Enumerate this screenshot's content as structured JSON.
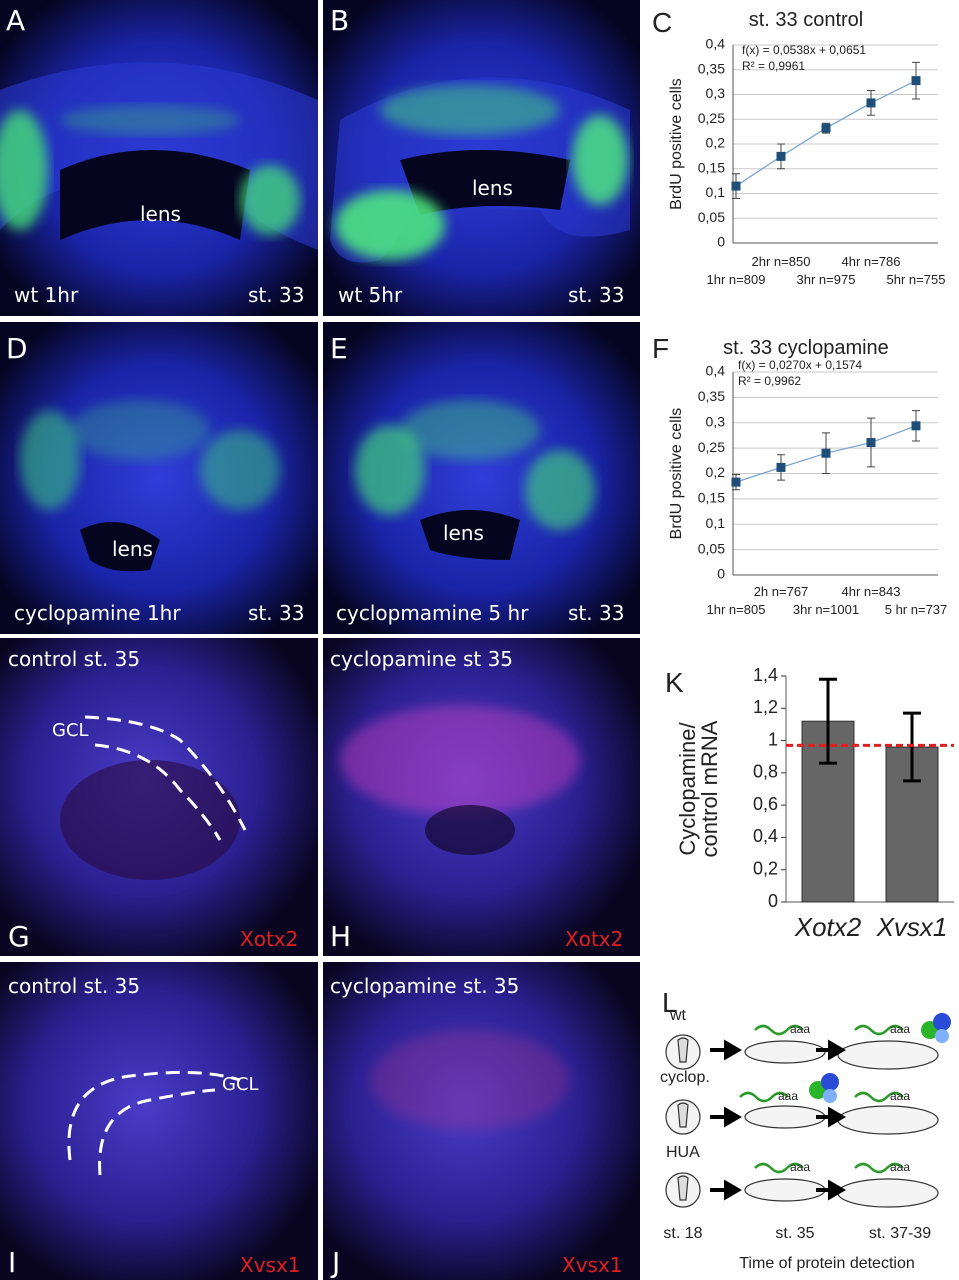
{
  "chart_data": [
    {
      "type": "line",
      "panel_label": "C",
      "title": "st. 33 control",
      "ylabel": [
        "BrdU positive cells"
      ],
      "annotations": [
        "f(x) = 0,0538x + 0,0651",
        "R² = 0,9961"
      ],
      "categories": [
        "1hr n=809",
        "2hr n=850",
        "3hr n=975",
        "4hr n=786",
        "5hr n=755"
      ],
      "values": [
        0.115,
        0.175,
        0.232,
        0.283,
        0.328
      ],
      "errors": [
        0.025,
        0.025,
        0.01,
        0.025,
        0.037
      ],
      "color": "#1f4e79",
      "line_color": "#6f9fd0",
      "ylim": [
        0,
        0.4
      ],
      "yticks": [
        0,
        {
          "value": 0.05,
          "label": "0,05"
        },
        {
          "value": 0.1,
          "label": "0,1"
        },
        {
          "value": 0.15,
          "label": "0,15"
        },
        {
          "value": 0.2,
          "label": "0,2"
        },
        {
          "value": 0.25,
          "label": "0,25"
        },
        {
          "value": 0.3,
          "label": "0,3"
        },
        {
          "value": 0.35,
          "label": "0,35"
        },
        {
          "value": 0.4,
          "label": "0,4"
        }
      ],
      "grid": true
    },
    {
      "type": "line",
      "panel_label": "F",
      "title": "st. 33 cyclopamine",
      "ylabel": [
        "BrdU positive cells"
      ],
      "annotations": [
        "f(x) = 0,0270x + 0,1574",
        "R² = 0,9962"
      ],
      "categories": [
        "1hr n=805",
        "2h n=767",
        "3hr n=1001",
        "4hr n=843",
        "5 hr n=737"
      ],
      "values": [
        0.183,
        0.212,
        0.24,
        0.261,
        0.294
      ],
      "errors": [
        0.015,
        0.025,
        0.04,
        0.048,
        0.03
      ],
      "color": "#1f4e79",
      "line_color": "#6f9fd0",
      "ylim": [
        0,
        0.4
      ],
      "yticks": [
        0,
        {
          "value": 0.05,
          "label": "0,05"
        },
        {
          "value": 0.1,
          "label": "0,1"
        },
        {
          "value": 0.15,
          "label": "0,15"
        },
        {
          "value": 0.2,
          "label": "0,2"
        },
        {
          "value": 0.25,
          "label": "0,25"
        },
        {
          "value": 0.3,
          "label": "0,3"
        },
        {
          "value": 0.35,
          "label": "0,35"
        },
        {
          "value": 0.4,
          "label": "0,4"
        }
      ],
      "grid": true
    },
    {
      "type": "bar",
      "panel_label": "K",
      "ylabel": [
        "Cyclopamine/",
        "control mRNA"
      ],
      "categories": [
        "Xotx2",
        "Xvsx1"
      ],
      "values": [
        1.12,
        0.96
      ],
      "errors": [
        0.26,
        0.21
      ],
      "color": "#666666",
      "reference_line": 0.97,
      "reference_color": "#e02020",
      "ylim": [
        0,
        1.4
      ],
      "yticks": [
        0,
        {
          "value": 0.2,
          "label": "0,2"
        },
        {
          "value": 0.4,
          "label": "0,4"
        },
        {
          "value": 0.6,
          "label": "0,6"
        },
        {
          "value": 0.8,
          "label": "0,8"
        },
        1,
        {
          "value": 1.2,
          "label": "1,2"
        },
        {
          "value": 1.4,
          "label": "1,4"
        }
      ],
      "grid": false
    }
  ],
  "panels": [
    {
      "letter": "A",
      "caption": "wt 1hr",
      "stage": "st. 33",
      "label": "lens"
    },
    {
      "letter": "B",
      "caption": "wt 5hr",
      "stage": "st. 33",
      "label": "lens"
    },
    {
      "letter": "D",
      "caption": "cyclopamine 1hr",
      "stage": "st. 33",
      "label": "lens"
    },
    {
      "letter": "E",
      "caption": "cyclopmamine 5 hr",
      "stage": "st. 33",
      "label": "lens"
    },
    {
      "letter": "G",
      "caption": "control st. 35",
      "marker": "Xotx2",
      "label": "GCL"
    },
    {
      "letter": "H",
      "caption": "cyclopamine st 35",
      "marker": "Xotx2"
    },
    {
      "letter": "I",
      "caption": "control st. 35",
      "marker": "Xvsx1",
      "label": "GCL"
    },
    {
      "letter": "J",
      "caption": "cyclopamine st. 35",
      "marker": "Xvsx1"
    }
  ],
  "schematic": {
    "letter": "L",
    "rows": [
      {
        "label": "wt",
        "mrna": [
          "aaa",
          "aaa"
        ]
      },
      {
        "label": "cyclop.",
        "mrna": [
          "aaa",
          "aaa"
        ]
      },
      {
        "label": "HUA",
        "mrna": [
          "aaa",
          "aaa"
        ]
      }
    ],
    "stages": [
      "st. 18",
      "st. 35",
      "st. 37-39"
    ],
    "caption": "Time of protein detection"
  }
}
